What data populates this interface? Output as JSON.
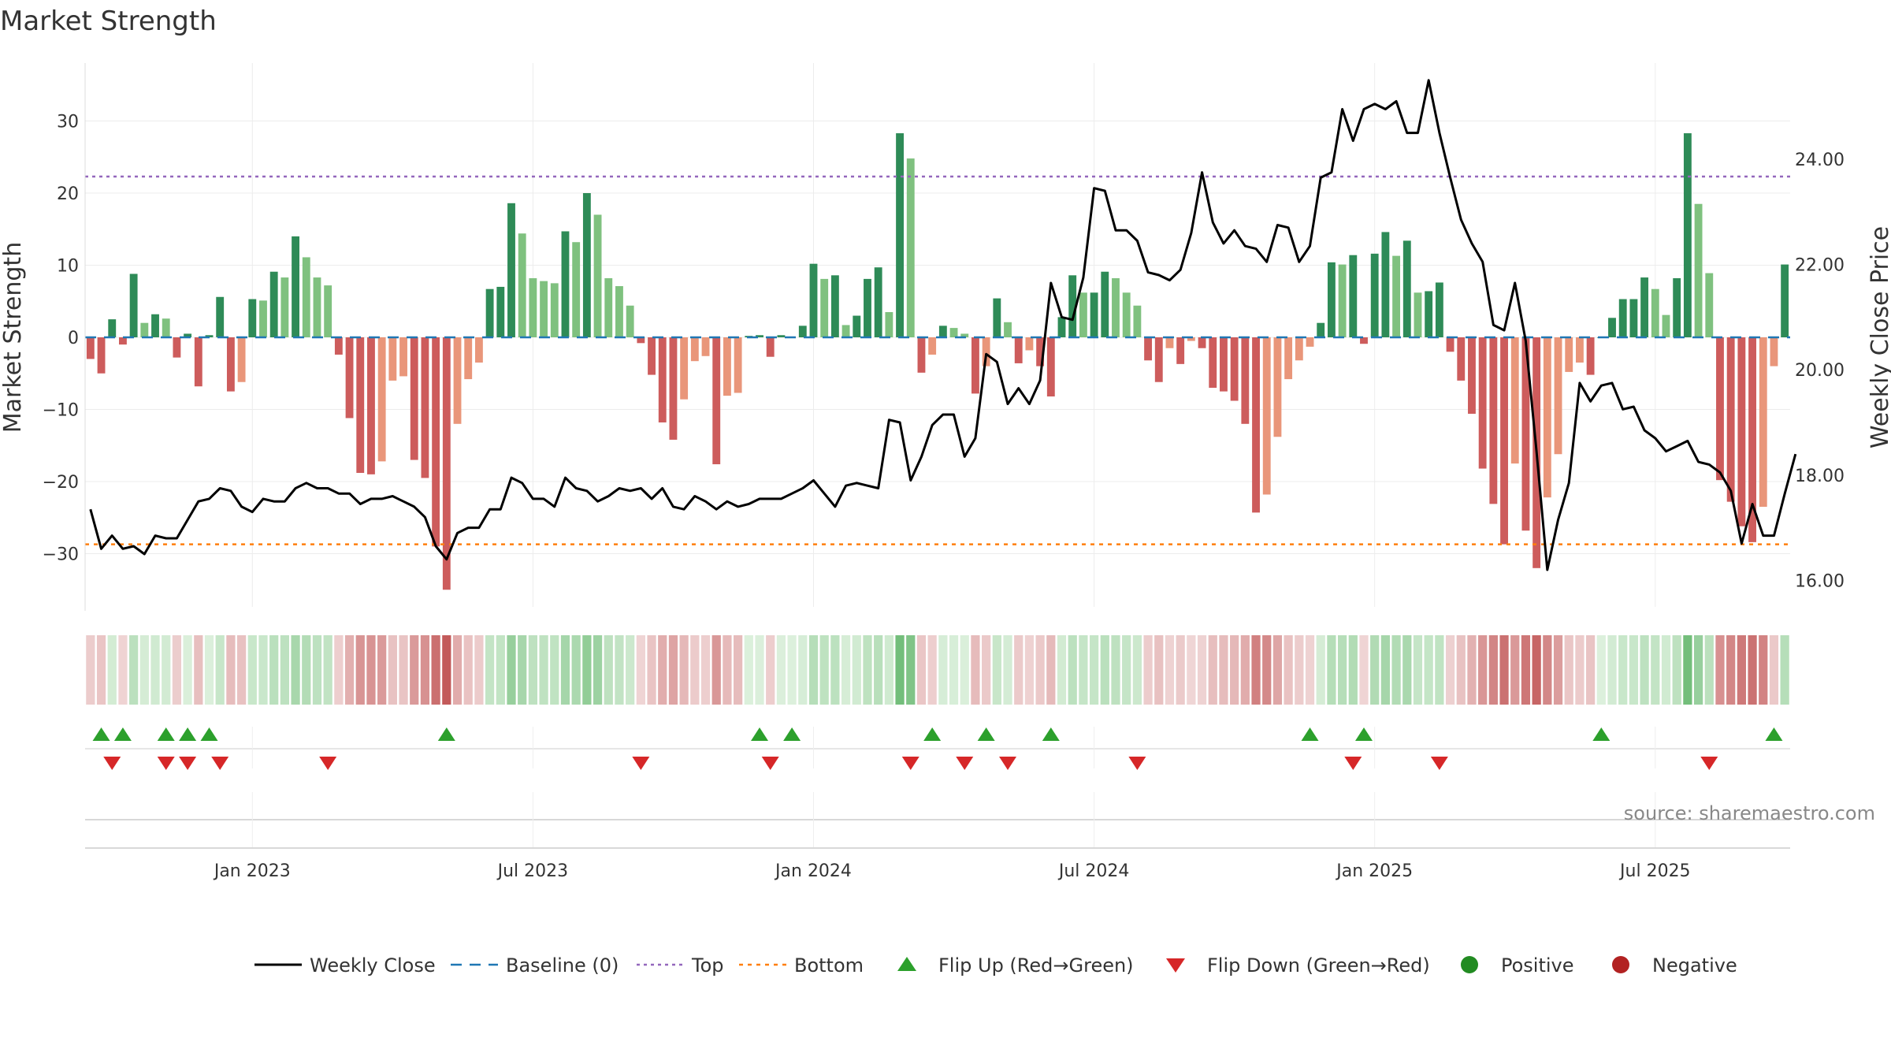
{
  "chart_data": {
    "type": "bar",
    "title": "Market Strength",
    "ylabel": "Market Strength",
    "y2label": "Weekly Close Price",
    "source": "source: sharemaestro.com",
    "ylim": [
      -38,
      38
    ],
    "y2lim": [
      15.4,
      25.8
    ],
    "yticks": [
      30,
      20,
      10,
      0,
      -10,
      -20,
      -30
    ],
    "y2ticks": [
      24.0,
      22.0,
      20.0,
      18.0,
      16.0
    ],
    "y2tick_labels": [
      "24.00",
      "22.00",
      "20.00",
      "18.00",
      "16.00"
    ],
    "x_ticks": [
      {
        "label": "Jan 2023",
        "index": 15
      },
      {
        "label": "Jul 2023",
        "index": 41
      },
      {
        "label": "Jan 2024",
        "index": 67
      },
      {
        "label": "Jul 2024",
        "index": 93
      },
      {
        "label": "Jan 2025",
        "index": 119
      },
      {
        "label": "Jul 2025",
        "index": 145
      }
    ],
    "top_level": 22.3,
    "bottom_level": -28.7,
    "strength": [
      -3,
      -5,
      2.5,
      -1,
      8.8,
      2,
      3.2,
      2.6,
      -2.8,
      0.5,
      -6.8,
      0.3,
      5.6,
      -7.5,
      -6.2,
      5.3,
      5.1,
      9.1,
      8.3,
      14,
      11.1,
      8.3,
      7.2,
      -2.4,
      -11.2,
      -18.8,
      -19,
      -17.2,
      -6,
      -5.4,
      -17,
      -19.5,
      -29,
      -35,
      -12,
      -5.8,
      -3.5,
      6.7,
      7,
      18.6,
      14.4,
      8.2,
      7.8,
      7.5,
      14.7,
      13.2,
      20,
      17,
      8.2,
      7.1,
      4.4,
      -0.8,
      -5.2,
      -11.8,
      -14.2,
      -8.6,
      -3.3,
      -2.6,
      -17.6,
      -8.1,
      -7.7,
      0.2,
      0.3,
      -2.7,
      0.3,
      0,
      1.6,
      10.2,
      8.1,
      8.6,
      1.7,
      3,
      8.1,
      9.7,
      3.5,
      28.3,
      24.8,
      -4.9,
      -2.4,
      1.6,
      1.3,
      0.5,
      -7.8,
      -4,
      5.4,
      2.1,
      -3.6,
      -1.8,
      -4,
      -8.2,
      2.8,
      8.6,
      6.2,
      6.2,
      9.1,
      8.2,
      6.2,
      4.4,
      -3.2,
      -6.2,
      -1.5,
      -3.7,
      -0.5,
      -1.5,
      -7,
      -7.5,
      -8.8,
      -12,
      -24.3,
      -21.8,
      -13.8,
      -5.8,
      -3.2,
      -1.3,
      2,
      10.4,
      10.1,
      11.4,
      -0.9,
      11.6,
      14.6,
      11.3,
      13.4,
      6.2,
      6.4,
      7.6,
      -2,
      -6,
      -10.6,
      -18.2,
      -23.1,
      -28.7,
      -17.5,
      -26.8,
      -32,
      -22.2,
      -16.2,
      -4.8,
      -3.5,
      -5.2,
      0,
      2.7,
      5.3,
      5.3,
      8.3,
      6.7,
      3.1,
      8.2,
      28.3,
      18.5,
      8.9,
      -19.8,
      -22.8,
      -26.2,
      -28.4,
      -23.5,
      -4,
      10.1
    ],
    "price": [
      17.35,
      16.6,
      16.85,
      16.6,
      16.65,
      16.5,
      16.85,
      16.8,
      16.8,
      17.15,
      17.5,
      17.55,
      17.75,
      17.7,
      17.4,
      17.3,
      17.55,
      17.5,
      17.5,
      17.75,
      17.85,
      17.75,
      17.75,
      17.65,
      17.65,
      17.45,
      17.55,
      17.55,
      17.6,
      17.5,
      17.4,
      17.2,
      16.65,
      16.4,
      16.9,
      17,
      17,
      17.35,
      17.35,
      17.95,
      17.85,
      17.55,
      17.55,
      17.4,
      17.95,
      17.75,
      17.7,
      17.5,
      17.6,
      17.75,
      17.7,
      17.75,
      17.55,
      17.75,
      17.4,
      17.35,
      17.6,
      17.5,
      17.35,
      17.5,
      17.4,
      17.45,
      17.55,
      17.55,
      17.55,
      17.65,
      17.75,
      17.9,
      17.65,
      17.4,
      17.8,
      17.85,
      17.8,
      17.75,
      19.05,
      19,
      17.9,
      18.35,
      18.95,
      19.15,
      19.15,
      18.35,
      18.7,
      20.3,
      20.15,
      19.35,
      19.65,
      19.35,
      19.8,
      21.65,
      21,
      20.95,
      21.75,
      23.45,
      23.4,
      22.65,
      22.65,
      22.45,
      21.85,
      21.8,
      21.7,
      21.9,
      22.6,
      23.75,
      22.8,
      22.4,
      22.65,
      22.35,
      22.3,
      22.05,
      22.75,
      22.7,
      22.05,
      22.35,
      23.65,
      23.75,
      24.95,
      24.35,
      24.95,
      25.05,
      24.95,
      25.1,
      24.5,
      24.5,
      25.5,
      24.5,
      23.65,
      22.85,
      22.4,
      22.05,
      20.85,
      20.75,
      21.65,
      20.55,
      18.45,
      16.2,
      17.15,
      17.85,
      19.75,
      19.4,
      19.7,
      19.75,
      19.25,
      19.3,
      18.85,
      18.7,
      18.45,
      18.55,
      18.65,
      18.25,
      18.2,
      18.05,
      17.7,
      16.7,
      17.45,
      16.85,
      16.85,
      17.65,
      18.4
    ],
    "flip_up": [
      1,
      3,
      7,
      9,
      11,
      33,
      62,
      65,
      78,
      83,
      89,
      113,
      118,
      140,
      156
    ],
    "flip_down": [
      2,
      7,
      9,
      12,
      22,
      51,
      63,
      76,
      81,
      85,
      97,
      117,
      125,
      150
    ],
    "legend": [
      {
        "key": "weekly-close",
        "label": "Weekly Close"
      },
      {
        "key": "baseline",
        "label": "Baseline (0)"
      },
      {
        "key": "top",
        "label": "Top"
      },
      {
        "key": "bottom",
        "label": "Bottom"
      },
      {
        "key": "flip-up",
        "label": "Flip Up (Red→Green)"
      },
      {
        "key": "flip-down",
        "label": "Flip Down (Green→Red)"
      },
      {
        "key": "positive",
        "label": "Positive"
      },
      {
        "key": "negative",
        "label": "Negative"
      }
    ],
    "colors": {
      "pos_dark": "#2e8b57",
      "pos_light": "#7fc17f",
      "neg_dark": "#cd5c5c",
      "neg_light": "#e9967a",
      "price_line": "#000000",
      "baseline": "#1f77b4",
      "top": "#9467bd",
      "bottom": "#ff7f0e",
      "flip_up": "#2ca02c",
      "flip_down": "#d62728",
      "positive_dot": "#228b22",
      "negative_dot": "#b22222"
    }
  }
}
